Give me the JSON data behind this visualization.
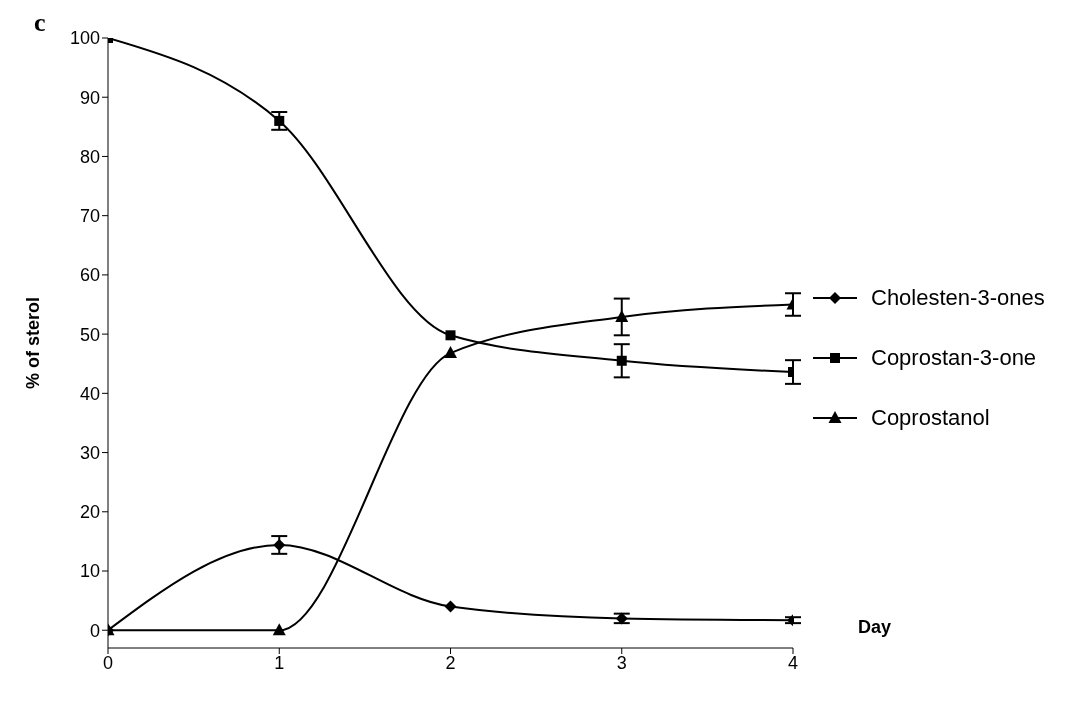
{
  "chart_data": {
    "type": "line",
    "title": "c",
    "xlabel": "Day",
    "ylabel": "% of sterol",
    "x": [
      0,
      1,
      2,
      3,
      4
    ],
    "series": [
      {
        "name": "Cholesten-3-ones",
        "color": "#000000",
        "marker": "diamond",
        "values": [
          0,
          14.4,
          4,
          2,
          1.7
        ],
        "errors": [
          null,
          1.5,
          null,
          0.8,
          0.5
        ]
      },
      {
        "name": "Coprostan-3-one",
        "color": "#000000",
        "marker": "square",
        "values": [
          100,
          86,
          49.8,
          45.5,
          43.6
        ],
        "errors": [
          null,
          1.5,
          null,
          2.8,
          2
        ]
      },
      {
        "name": "Coprostanol",
        "color": "#000000",
        "marker": "triangle",
        "values": [
          0,
          0,
          46.8,
          52.9,
          55
        ],
        "errors": [
          null,
          null,
          null,
          3.1,
          1.9
        ]
      }
    ],
    "xlim": [
      0,
      4
    ],
    "xticks": [
      0,
      1,
      2,
      3,
      4
    ],
    "ylim": [
      -3,
      100
    ],
    "yticks": [
      0,
      10,
      20,
      30,
      40,
      50,
      60,
      70,
      80,
      90,
      100
    ],
    "legend": "right",
    "line_style": "solid"
  }
}
